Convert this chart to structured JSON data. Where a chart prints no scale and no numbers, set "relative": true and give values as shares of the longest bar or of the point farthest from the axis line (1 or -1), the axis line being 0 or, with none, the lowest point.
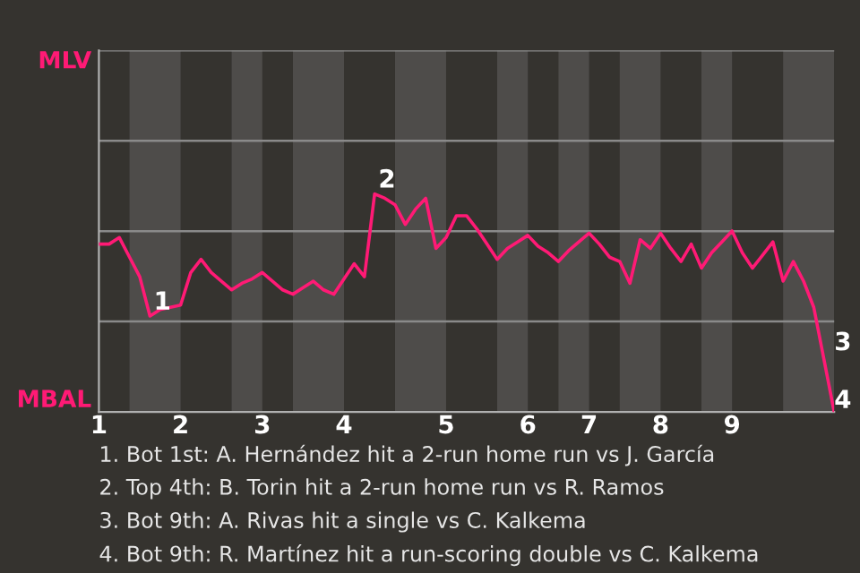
{
  "chart_data": {
    "type": "line",
    "relative": true,
    "categories": [
      "1",
      null,
      null,
      null,
      null,
      null,
      null,
      null,
      "2",
      null,
      null,
      null,
      null,
      null,
      null,
      null,
      "3",
      null,
      null,
      null,
      null,
      null,
      null,
      null,
      "4",
      null,
      null,
      null,
      null,
      null,
      null,
      null,
      null,
      null,
      "5",
      null,
      null,
      null,
      null,
      null,
      null,
      null,
      "6",
      null,
      null,
      null,
      null,
      null,
      "7",
      null,
      null,
      null,
      null,
      null,
      null,
      "8",
      null,
      null,
      null,
      null,
      null,
      null,
      "9",
      null,
      null,
      null,
      null,
      null,
      null,
      null,
      null,
      null,
      null
    ],
    "series": [
      {
        "color": "#ff1a75",
        "values": [
          0.77,
          0.77,
          0.8,
          0.71,
          0.62,
          0.44,
          0.47,
          0.48,
          0.49,
          0.64,
          0.7,
          0.64,
          0.6,
          0.56,
          0.59,
          0.61,
          0.64,
          0.6,
          0.56,
          0.54,
          0.57,
          0.6,
          0.56,
          0.54,
          0.61,
          0.68,
          0.62,
          1,
          0.98,
          0.95,
          0.86,
          0.93,
          0.98,
          0.75,
          0.8,
          0.9,
          0.9,
          0.84,
          0.77,
          0.7,
          0.75,
          0.78,
          0.81,
          0.76,
          0.73,
          0.69,
          0.74,
          0.78,
          0.82,
          0.77,
          0.71,
          0.69,
          0.59,
          0.79,
          0.75,
          0.82,
          0.75,
          0.69,
          0.77,
          0.66,
          0.73,
          0.78,
          0.83,
          0.73,
          0.66,
          0.72,
          0.78,
          0.6,
          0.69,
          0.6,
          0.48,
          0.24,
          0
        ],
        "name": null
      }
    ],
    "ref_lines": [
      {
        "axis": "y",
        "value": 0.415,
        "color": "#8a8a8a"
      },
      {
        "axis": "y",
        "value": 0.829,
        "color": "#8a8a8a"
      },
      {
        "axis": "y",
        "value": 1.244,
        "color": "#8a8a8a"
      },
      {
        "axis": "y",
        "value": 1.658,
        "color": "#8a8a8a"
      }
    ],
    "marker": "none",
    "line_style": "solid",
    "annotations": [
      {
        "text": "1",
        "y": 0.44
      },
      {
        "text": "2",
        "y": 1
      },
      "MLV",
      "MBAL",
      "3",
      "4",
      "1. Bot 1st: A. Hernández hit a 2-run home run vs J. García",
      "2. Top 4th: B. Torin hit a 2-run home run vs R. Ramos",
      "3. Bot 9th: A. Rivas hit a single vs C. Kalkema",
      "4. Bot 9th: R. Martínez hit a run-scoring double vs C. Kalkema"
    ]
  }
}
